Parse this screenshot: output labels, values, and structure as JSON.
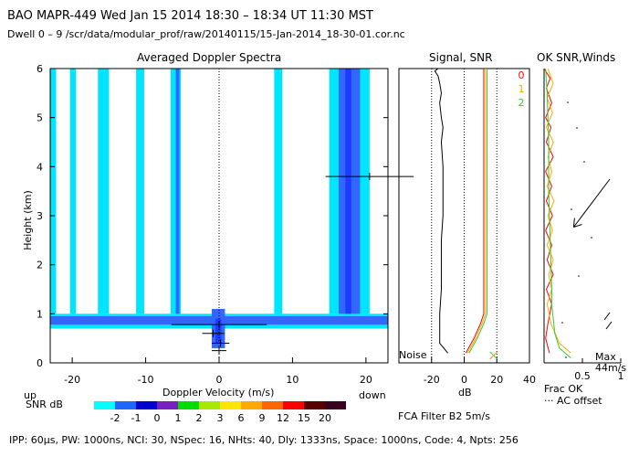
{
  "header": {
    "line1": "BAO  MAPR-449  Wed Jan 15 2014 18:30 – 18:34 UT 11:30 MST",
    "line2": "Dwell  0 –  9   /scr/data/modular_prof/raw/20140115/15-Jan-2014_18-30-01.cor.nc"
  },
  "footer": "IPP: 60μs,  PW: 1000ns,  NCI: 30,  NSpec: 16, NHts: 40,  Dly: 1333ns,  Space: 1000ns,  Code: 4,  Npts: 256",
  "filter_note": "FCA Filter B2   5m/s",
  "colors": {
    "cyan": "#00e5ff",
    "blue_dark": "#1a3dff",
    "blue_med": "#3366ff",
    "purple": "#6a1fb0",
    "axis": "#000000"
  },
  "chart_data": [
    {
      "type": "heatmap",
      "title": "Averaged Doppler Spectra",
      "xlabel": "Doppler Velocity (m/s)",
      "ylabel": "Height (km)",
      "x_left_label": "up",
      "x_right_label": "down",
      "xlim": [
        -23,
        23
      ],
      "ylim": [
        0,
        6
      ],
      "xticks": [
        -20,
        -10,
        0,
        10,
        20
      ],
      "yticks": [
        0,
        1,
        2,
        3,
        4,
        5,
        6
      ],
      "colorbar": {
        "label": "SNR dB",
        "ticks": [
          "-2",
          "-1",
          "0",
          "1",
          "2",
          "3",
          "6",
          "9",
          "12",
          "15",
          "20"
        ],
        "colors": [
          "#00ffff",
          "#1f66ff",
          "#0000d0",
          "#7a1fbf",
          "#00dd00",
          "#a8e800",
          "#ffe600",
          "#ffaa00",
          "#ff6600",
          "#ff0000",
          "#5a0000",
          "#3a0020"
        ]
      },
      "bands": [
        {
          "x0": -23,
          "x1": -22.2,
          "y0": 1.0,
          "y1": 6.0,
          "level": "cyan"
        },
        {
          "x0": -20.3,
          "x1": -19.5,
          "y0": 1.0,
          "y1": 6.0,
          "level": "cyan"
        },
        {
          "x0": -16.5,
          "x1": -15.0,
          "y0": 1.0,
          "y1": 6.0,
          "level": "cyan"
        },
        {
          "x0": -11.3,
          "x1": -10.2,
          "y0": 1.0,
          "y1": 6.0,
          "level": "cyan"
        },
        {
          "x0": -6.6,
          "x1": -5.2,
          "y0": 1.0,
          "y1": 6.0,
          "level": "cyan"
        },
        {
          "x0": -5.9,
          "x1": -5.4,
          "y0": 1.0,
          "y1": 6.0,
          "level": "blue"
        },
        {
          "x0": 7.5,
          "x1": 8.6,
          "y0": 1.0,
          "y1": 6.0,
          "level": "cyan"
        },
        {
          "x0": 15.0,
          "x1": 20.5,
          "y0": 1.0,
          "y1": 6.0,
          "level": "cyan"
        },
        {
          "x0": 16.3,
          "x1": 19.2,
          "y0": 1.0,
          "y1": 6.0,
          "level": "blue"
        },
        {
          "x0": 17.2,
          "x1": 18.0,
          "y0": 1.0,
          "y1": 6.0,
          "level": "navy"
        },
        {
          "x0": -23,
          "x1": 23,
          "y0": 0.7,
          "y1": 1.0,
          "level": "cyan"
        },
        {
          "x0": -23,
          "x1": 23,
          "y0": 0.78,
          "y1": 0.95,
          "level": "blue"
        },
        {
          "x0": -1.0,
          "x1": 0.8,
          "y0": 0.3,
          "y1": 1.1,
          "level": "blue"
        },
        {
          "x0": -0.5,
          "x1": 0.3,
          "y0": 0.4,
          "y1": 0.9,
          "level": "navy"
        }
      ],
      "wind_marks": [
        {
          "y": 3.8,
          "x_center": 20.5,
          "half_width": 6.0
        },
        {
          "y": 0.78,
          "x_center": 0.0,
          "half_width": 6.5
        },
        {
          "y": 0.6,
          "x_center": -0.8,
          "half_width": 1.5
        },
        {
          "y": 0.4,
          "x_center": 0.2,
          "half_width": 1.2
        },
        {
          "y": 0.25,
          "x_center": 0.0,
          "half_width": 1.0
        }
      ]
    },
    {
      "type": "line",
      "title": "Signal, SNR",
      "xlabel": "dB",
      "xlim": [
        -40,
        40
      ],
      "ylim": [
        0,
        6
      ],
      "xticks": [
        -20,
        0,
        20,
        40
      ],
      "annotation": "Noise",
      "series": [
        {
          "name": "signal",
          "color": "#000000",
          "x": [
            -10,
            -15,
            -15,
            -15,
            -15,
            -14,
            -14,
            -14,
            -13,
            -13,
            -13,
            -14,
            -13,
            -14,
            -15,
            -14,
            -15,
            -16,
            -18,
            -16,
            -15,
            -14
          ],
          "y": [
            0.2,
            0.4,
            0.6,
            0.8,
            1.0,
            1.5,
            2.0,
            2.5,
            3.0,
            3.5,
            4.0,
            4.5,
            4.8,
            5.0,
            5.3,
            5.5,
            5.7,
            5.85,
            5.95,
            6.0,
            6.0,
            6.0
          ]
        },
        {
          "name": "snr_0",
          "color": "#ff0000",
          "x": [
            1,
            6,
            10,
            12,
            12,
            12,
            12,
            12,
            12,
            12,
            12,
            12,
            12,
            12,
            12,
            12,
            12
          ],
          "y": [
            0.2,
            0.5,
            0.8,
            1.0,
            1.3,
            1.8,
            2.3,
            2.8,
            3.3,
            3.8,
            4.3,
            4.8,
            5.2,
            5.5,
            5.8,
            5.95,
            6.0
          ]
        },
        {
          "name": "snr_1",
          "color": "#ffaa00",
          "x": [
            2,
            7,
            11,
            13,
            13,
            13,
            13,
            13,
            13,
            13,
            13,
            13,
            13,
            13,
            13
          ],
          "y": [
            0.2,
            0.5,
            0.8,
            1.0,
            1.5,
            2.0,
            2.5,
            3.0,
            3.5,
            4.0,
            4.5,
            5.0,
            5.5,
            5.9,
            6.0
          ]
        },
        {
          "name": "snr_2",
          "color": "#33cc33",
          "x": [
            3,
            8,
            12,
            14,
            14,
            14,
            14,
            14,
            14,
            14,
            14,
            14,
            14,
            14,
            14
          ],
          "y": [
            0.2,
            0.5,
            0.8,
            1.0,
            1.5,
            2.0,
            2.5,
            3.0,
            3.5,
            4.0,
            4.5,
            5.0,
            5.5,
            5.9,
            6.0
          ]
        }
      ],
      "noise_marks": [
        {
          "x": 18,
          "y": 0.15
        }
      ]
    },
    {
      "type": "line",
      "title": "OK  SNR,Winds",
      "xlabel_ticks": [
        "0.5",
        "1"
      ],
      "xlabel": "Frac OK",
      "xlabel2": "··· AC offset",
      "max_label": "Max",
      "max_value": "44m/s",
      "legend": [
        {
          "label": "0",
          "color": "#ff0000"
        },
        {
          "label": "1",
          "color": "#ffaa00"
        },
        {
          "label": "2",
          "color": "#33cc33"
        }
      ],
      "xlim": [
        0,
        1
      ],
      "ylim": [
        0,
        6
      ],
      "series": [
        {
          "name": "ok_0",
          "color": "#ff0000",
          "x": [
            0.0,
            0.08,
            0.03,
            0.1,
            0.02,
            0.09,
            0.03,
            0.12,
            0.02,
            0.1,
            0.03,
            0.11,
            0.02,
            0.1,
            0.04,
            0.12,
            0.03,
            0.1,
            0.05,
            0.02,
            0.07
          ],
          "y": [
            6.0,
            5.8,
            5.6,
            5.3,
            5.0,
            4.8,
            4.5,
            4.2,
            3.9,
            3.6,
            3.3,
            3.0,
            2.7,
            2.4,
            2.1,
            1.8,
            1.5,
            1.2,
            0.8,
            0.5,
            0.2
          ]
        },
        {
          "name": "ok_1",
          "color": "#ffaa00",
          "x": [
            0.05,
            0.12,
            0.04,
            0.11,
            0.03,
            0.12,
            0.05,
            0.1,
            0.04,
            0.13,
            0.05,
            0.11,
            0.04,
            0.12,
            0.06,
            0.1,
            0.04,
            0.09,
            0.2,
            0.35
          ],
          "y": [
            6.0,
            5.7,
            5.4,
            5.1,
            4.8,
            4.5,
            4.2,
            3.9,
            3.6,
            3.3,
            3.0,
            2.7,
            2.4,
            2.1,
            1.8,
            1.5,
            1.2,
            0.8,
            0.4,
            0.2
          ]
        },
        {
          "name": "ok_2",
          "color": "#33cc33",
          "x": [
            0.02,
            0.04,
            0.05,
            0.06,
            0.06,
            0.06,
            0.07,
            0.08,
            0.09,
            0.1,
            0.1,
            0.12,
            0.14,
            0.2,
            0.35
          ],
          "y": [
            6.0,
            5.5,
            5.0,
            4.5,
            4.0,
            3.5,
            3.0,
            2.5,
            2.0,
            1.5,
            1.2,
            0.9,
            0.6,
            0.3,
            0.1
          ]
        }
      ],
      "wind_arrow": {
        "u": -0.45,
        "v": -1.5,
        "height_km": 3.2
      }
    }
  ]
}
